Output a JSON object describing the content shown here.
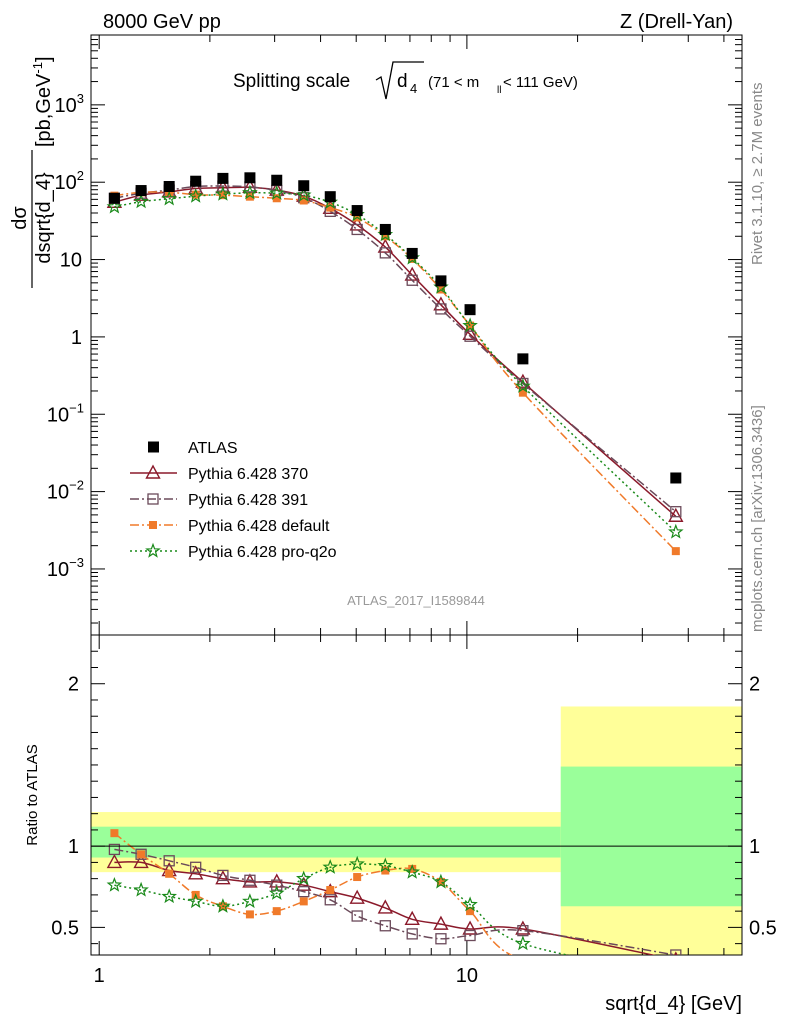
{
  "header": {
    "left": "8000 GeV pp",
    "right": "Z (Drell-Yan)"
  },
  "side_labels": {
    "rivet": "Rivet 3.1.10, ≥ 2.7M events",
    "mcplots": "mcplots.cern.ch [arXiv:1306.3436]"
  },
  "watermark": "ATLAS_2017_I1589844",
  "colors": {
    "atlas": "#000000",
    "p370": "#8b1a2b",
    "p391": "#6b4a5a",
    "pdefault": "#f07a2a",
    "pproq2o": "#1a8a1a",
    "band_stat": "#9aff9a",
    "band_total": "#ffff99"
  },
  "chart_data": [
    {
      "type": "line",
      "title_main": "Splitting scale",
      "title_sqrt": "d",
      "title_sub": "4",
      "title_range": "(71 < m",
      "title_range_sub": "ll",
      "title_range_end": " < 111 GeV)",
      "ylabel_num": "dσ",
      "ylabel_den": "dsqrt{d_4}",
      "ylabel_unit": "[pb,GeV",
      "ylabel_unit_sup": "-1",
      "ylabel_unit_end": "]",
      "xscale": "log",
      "yscale": "log",
      "xlim": [
        0.95,
        56
      ],
      "ylim": [
        0.00014,
        8000
      ],
      "yticks": [
        {
          "v": 0.001,
          "b": "10",
          "e": "−3"
        },
        {
          "v": 0.01,
          "b": "10",
          "e": "−2"
        },
        {
          "v": 0.1,
          "b": "10",
          "e": "−1"
        },
        {
          "v": 1,
          "b": "1",
          "e": ""
        },
        {
          "v": 10,
          "b": "10",
          "e": ""
        },
        {
          "v": 100,
          "b": "10",
          "e": "2"
        },
        {
          "v": 1000,
          "b": "10",
          "e": "3"
        }
      ],
      "legend_placement": "bottom-left",
      "atlas": {
        "name": "ATLAS",
        "x": [
          1.1,
          1.3,
          1.55,
          1.83,
          2.17,
          2.57,
          3.04,
          3.6,
          4.25,
          5.03,
          6.0,
          7.1,
          8.5,
          10.2,
          14.2,
          37.0
        ],
        "y": [
          62,
          78,
          88,
          103,
          112,
          114,
          106,
          90,
          65,
          43,
          24.5,
          12,
          5.3,
          2.25,
          0.52,
          0.015
        ]
      },
      "series": [
        {
          "name": "Pythia 6.428 370",
          "color_key": "p370",
          "style": "solid",
          "marker": "triangle",
          "x": [
            1.1,
            1.3,
            1.55,
            1.83,
            2.17,
            2.57,
            3.04,
            3.6,
            4.25,
            5.03,
            6.0,
            7.1,
            8.5,
            10.2,
            14.2,
            37.0
          ],
          "y": [
            55,
            68,
            75,
            83,
            85,
            86,
            79,
            66,
            46,
            28,
            14.5,
            6.3,
            2.6,
            1.08,
            0.26,
            0.0048
          ]
        },
        {
          "name": "Pythia 6.428 391",
          "color_key": "p391",
          "style": "dashdot",
          "marker": "square-open",
          "x": [
            1.1,
            1.3,
            1.55,
            1.83,
            2.17,
            2.57,
            3.04,
            3.6,
            4.25,
            5.03,
            6.0,
            7.1,
            8.5,
            10.2,
            14.2,
            37.0
          ],
          "y": [
            62,
            72,
            79,
            88,
            89,
            87,
            78,
            63,
            42,
            24.5,
            12.2,
            5.4,
            2.3,
            1.02,
            0.25,
            0.0055
          ]
        },
        {
          "name": "Pythia 6.428 default",
          "color_key": "pdefault",
          "style": "dashdot",
          "marker": "square",
          "x": [
            1.1,
            1.3,
            1.55,
            1.83,
            2.17,
            2.57,
            3.04,
            3.6,
            4.25,
            5.03,
            6.0,
            7.1,
            8.5,
            10.2,
            14.2,
            37.0
          ],
          "y": [
            67,
            74,
            74,
            69,
            68,
            65,
            62,
            58,
            47,
            35,
            20,
            10.2,
            4.1,
            1.4,
            0.19,
            0.0017
          ]
        },
        {
          "name": "Pythia 6.428 pro-q2o",
          "color_key": "pproq2o",
          "style": "dotted",
          "marker": "star",
          "x": [
            1.1,
            1.3,
            1.55,
            1.83,
            2.17,
            2.57,
            3.04,
            3.6,
            4.25,
            5.03,
            6.0,
            7.1,
            8.5,
            10.2,
            14.2,
            37.0
          ],
          "y": [
            48,
            56,
            61,
            66,
            70,
            73,
            72,
            68,
            55,
            38,
            21,
            10.5,
            4.4,
            1.4,
            0.23,
            0.003
          ]
        }
      ]
    },
    {
      "type": "line",
      "ylabel": "Ratio to ATLAS",
      "xlabel": "sqrt{d_4} [GeV]",
      "xscale": "log",
      "xlim": [
        0.95,
        56
      ],
      "ylim": [
        0.33,
        2.3
      ],
      "yticks": [
        {
          "v": 0.5,
          "t": "0.5"
        },
        {
          "v": 1,
          "t": "1"
        },
        {
          "v": 2,
          "t": "2"
        }
      ],
      "xticks": [
        {
          "v": 1,
          "t": "1"
        },
        {
          "v": 10,
          "t": "10"
        }
      ],
      "bands": [
        {
          "x0": 0.95,
          "x1": 18.0,
          "total": [
            0.84,
            1.21
          ],
          "stat": [
            0.93,
            1.12
          ]
        },
        {
          "x0": 18.0,
          "x1": 56,
          "total": [
            0.33,
            1.86
          ],
          "stat": [
            0.63,
            1.49
          ]
        }
      ],
      "series": [
        {
          "name": "Pythia 6.428 370",
          "color_key": "p370",
          "style": "solid",
          "marker": "triangle",
          "x": [
            1.1,
            1.3,
            1.55,
            1.83,
            2.17,
            2.57,
            3.04,
            3.6,
            4.25,
            5.03,
            6.0,
            7.1,
            8.5,
            10.2,
            14.2,
            37.0
          ],
          "y": [
            0.9,
            0.9,
            0.85,
            0.83,
            0.8,
            0.78,
            0.78,
            0.76,
            0.72,
            0.68,
            0.62,
            0.55,
            0.52,
            0.49,
            0.49,
            0.3
          ]
        },
        {
          "name": "Pythia 6.428 391",
          "color_key": "p391",
          "style": "dashdot",
          "marker": "square-open",
          "x": [
            1.1,
            1.3,
            1.55,
            1.83,
            2.17,
            2.57,
            3.04,
            3.6,
            4.25,
            5.03,
            6.0,
            7.1,
            8.5,
            10.2,
            14.2,
            37.0
          ],
          "y": [
            0.98,
            0.95,
            0.91,
            0.87,
            0.82,
            0.79,
            0.76,
            0.72,
            0.67,
            0.57,
            0.51,
            0.46,
            0.43,
            0.45,
            0.48,
            0.33
          ]
        },
        {
          "name": "Pythia 6.428 default",
          "color_key": "pdefault",
          "style": "dashdot",
          "marker": "square",
          "x": [
            1.1,
            1.3,
            1.55,
            1.83,
            2.17,
            2.57,
            3.04,
            3.6,
            4.25,
            5.03,
            6.0,
            7.1,
            8.5,
            10.2,
            14.2,
            37.0
          ],
          "y": [
            1.08,
            0.95,
            0.83,
            0.7,
            0.63,
            0.58,
            0.6,
            0.66,
            0.73,
            0.81,
            0.85,
            0.86,
            0.78,
            0.6,
            0.3,
            0.2
          ]
        },
        {
          "name": "Pythia 6.428 pro-q2o",
          "color_key": "pproq2o",
          "style": "dotted",
          "marker": "star",
          "x": [
            1.1,
            1.3,
            1.55,
            1.83,
            2.17,
            2.57,
            3.04,
            3.6,
            4.25,
            5.03,
            6.0,
            7.1,
            8.5,
            10.2,
            14.2,
            37.0
          ],
          "y": [
            0.76,
            0.73,
            0.69,
            0.66,
            0.63,
            0.66,
            0.71,
            0.8,
            0.87,
            0.89,
            0.88,
            0.84,
            0.78,
            0.64,
            0.4,
            0.2
          ]
        }
      ]
    }
  ]
}
